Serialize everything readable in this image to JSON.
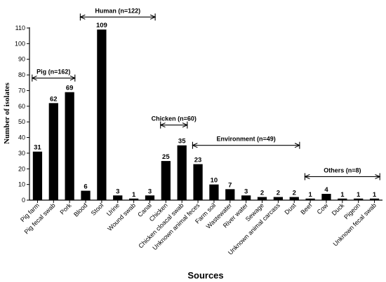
{
  "chart_data": {
    "type": "bar",
    "xlabel": "Sources",
    "ylabel": "Number of isolates",
    "ylim": [
      0,
      110
    ],
    "yticks": [
      0,
      10,
      20,
      30,
      40,
      50,
      60,
      70,
      80,
      90,
      100,
      110
    ],
    "grid": false,
    "bar_color": "#000000",
    "categories": [
      "Pig farm",
      "Pig fecal swab",
      "Pork",
      "Blood",
      "Stool",
      "Urine",
      "Wound swab",
      "Canal",
      "Chicken",
      "Chicken cloacal swab",
      "Unknown animal feces",
      "Farm soil",
      "Wastewater",
      "River water",
      "Sewage",
      "Unknown animal carcass",
      "Dust",
      "Beef",
      "Cow",
      "Duck",
      "Pigeon",
      "Unknown fecal swab"
    ],
    "values": [
      31,
      62,
      69,
      6,
      109,
      3,
      1,
      3,
      25,
      35,
      23,
      10,
      7,
      3,
      2,
      2,
      2,
      1,
      4,
      1,
      1,
      1
    ],
    "groups": [
      {
        "label": "Pig (n=162)",
        "start": 0,
        "end": 2,
        "y": 78
      },
      {
        "label": "Human (n=122)",
        "start": 3,
        "end": 7,
        "y": 117
      },
      {
        "label": "Chicken (n=60)",
        "start": 8,
        "end": 9,
        "y": 48
      },
      {
        "label": "Environment (n=49)",
        "start": 10,
        "end": 16,
        "y": 35
      },
      {
        "label": "Others (n=8)",
        "start": 17,
        "end": 21,
        "y": 15
      }
    ]
  }
}
